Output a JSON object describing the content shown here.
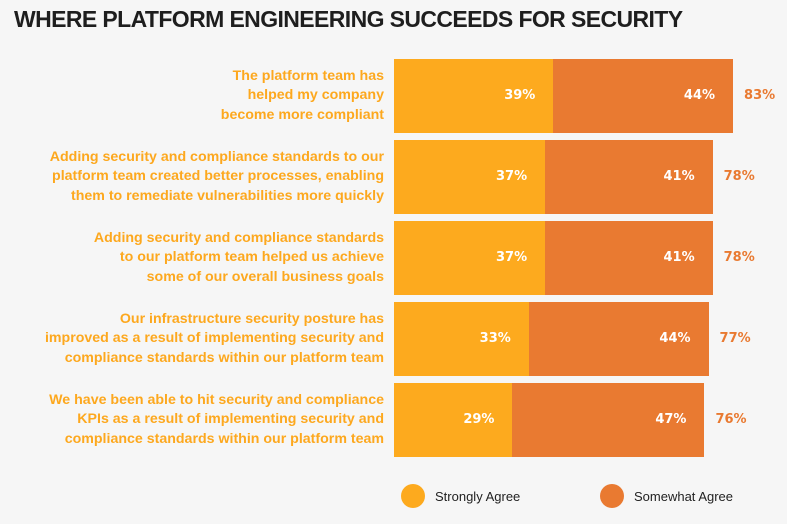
{
  "chart_data": {
    "type": "bar",
    "orientation": "horizontal",
    "stacked": true,
    "title": "WHERE PLATFORM ENGINEERING SUCCEEDS FOR SECURITY",
    "categories": [
      "The platform team has helped my company become more compliant",
      "Adding security and compliance standards to our platform team created better processes, enabling them to remediate vulnerabilities more quickly",
      "Adding security and compliance standards to our platform team helped us achieve some of our overall business goals",
      "Our infrastructure security posture has improved as a result of implementing security and compliance standards within our platform team",
      "We have been able to hit security and compliance KPIs as a result of implementing security and compliance standards within our platform team"
    ],
    "category_lines": [
      [
        "The platform team has",
        "helped my company",
        "become more compliant"
      ],
      [
        "Adding security and compliance standards to our",
        "platform team created better processes, enabling",
        "them to remediate vulnerabilities more quickly"
      ],
      [
        "Adding security and compliance standards",
        "to our platform team helped us achieve",
        "some of our overall business goals"
      ],
      [
        "Our infrastructure security posture has",
        "improved as a result of implementing security and",
        "compliance standards within our platform team"
      ],
      [
        "We have been able to hit security and compliance",
        "KPIs as a result of implementing security and",
        "compliance standards within our platform team"
      ]
    ],
    "series": [
      {
        "name": "Strongly Agree",
        "color": "#fdaa1e",
        "values": [
          39,
          37,
          37,
          33,
          29
        ],
        "labels": [
          "39%",
          "37%",
          "37%",
          "33%",
          "29%"
        ]
      },
      {
        "name": "Somewhat Agree",
        "color": "#e97a31",
        "values": [
          44,
          41,
          41,
          44,
          47
        ],
        "labels": [
          "44%",
          "41%",
          "41%",
          "44%",
          "47%"
        ]
      }
    ],
    "totals": [
      83,
      78,
      78,
      77,
      76
    ],
    "total_labels": [
      "83%",
      "78%",
      "78%",
      "77%",
      "76%"
    ],
    "unit": "%",
    "legend_position": "bottom-right",
    "grid": false,
    "xlim": [
      0,
      100
    ]
  }
}
